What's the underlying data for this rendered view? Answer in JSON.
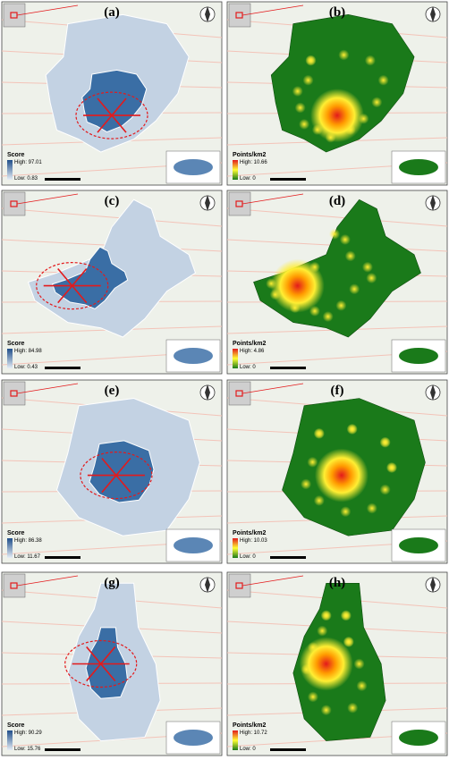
{
  "panels": [
    {
      "label": "(a)",
      "legend": {
        "title": "Score",
        "high": "High: 97.01",
        "low": "Low: 0.83"
      }
    },
    {
      "label": "(b)",
      "legend": {
        "title": "Points/km2",
        "high": "High: 10.66",
        "low": "Low: 0"
      }
    },
    {
      "label": "(c)",
      "legend": {
        "title": "Score",
        "high": "High: 84.98",
        "low": "Low: 0.43"
      }
    },
    {
      "label": "(d)",
      "legend": {
        "title": "Points/km2",
        "high": "High: 4.86",
        "low": "Low: 0"
      }
    },
    {
      "label": "(e)",
      "legend": {
        "title": "Score",
        "high": "High: 86.38",
        "low": "Low: 11.67"
      }
    },
    {
      "label": "(f)",
      "legend": {
        "title": "Points/km2",
        "high": "High: 10.03",
        "low": "Low: 0"
      }
    },
    {
      "label": "(g)",
      "legend": {
        "title": "Score",
        "high": "High: 90.29",
        "low": "Low: 15.76"
      }
    },
    {
      "label": "(h)",
      "legend": {
        "title": "Points/km2",
        "high": "High: 10.72",
        "low": "Low: 0"
      }
    }
  ]
}
